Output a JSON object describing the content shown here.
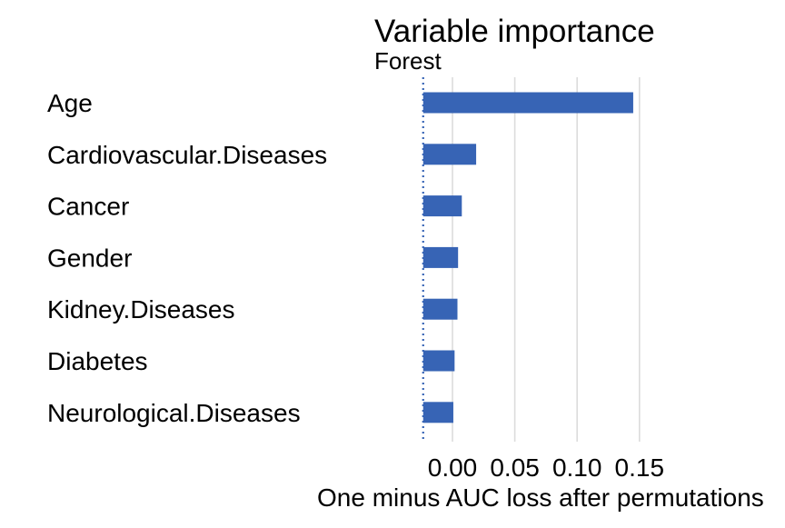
{
  "chart_data": {
    "type": "bar",
    "orientation": "horizontal",
    "title": "Variable importance",
    "subtitle": "Forest",
    "xlabel": "One minus AUC loss after permutations",
    "ylabel": "",
    "categories": [
      "Age",
      "Cardiovascular.Diseases",
      "Cancer",
      "Gender",
      "Kidney.Diseases",
      "Diabetes",
      "Neurological.Diseases"
    ],
    "values": [
      0.145,
      0.019,
      0.0075,
      0.0045,
      0.004,
      0.0017,
      0.0007
    ],
    "baseline": -0.0235,
    "xlim": [
      -0.0235,
      0.145
    ],
    "xticks": [
      0.0,
      0.05,
      0.1,
      0.15
    ],
    "xtick_labels": [
      "0.00",
      "0.05",
      "0.10",
      "0.15"
    ],
    "grid": true,
    "legend": "none",
    "bar_color": "#3764b5",
    "baseline_color": "#3764b5",
    "grid_color": "#dcdcdc"
  }
}
